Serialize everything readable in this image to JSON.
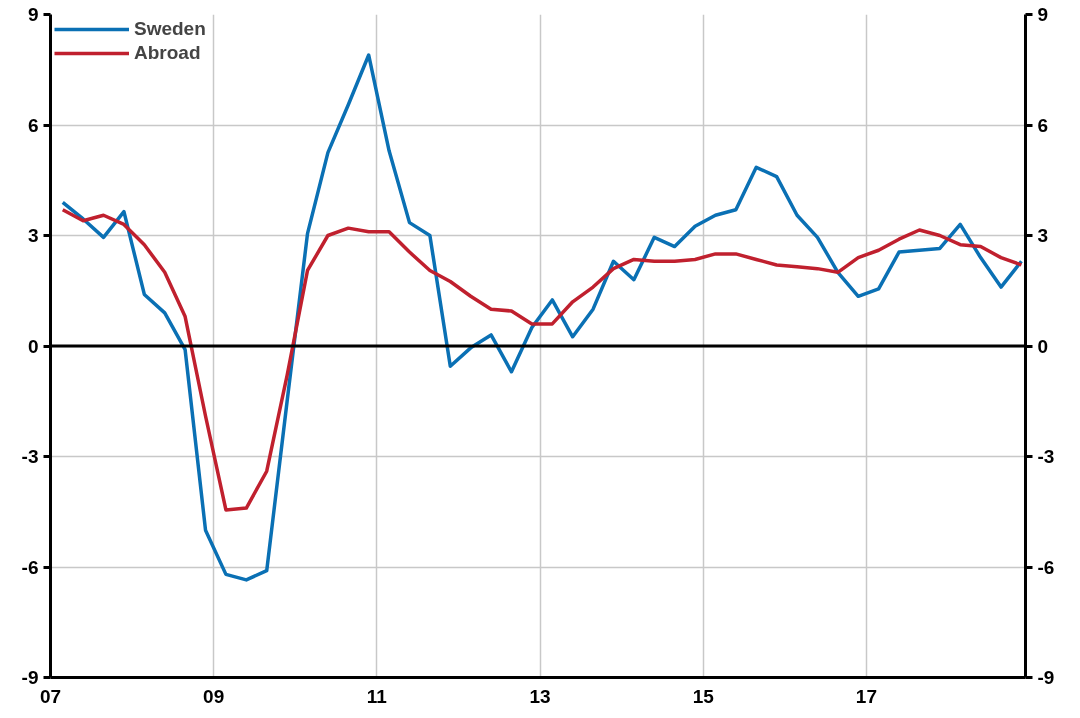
{
  "chart_data": {
    "type": "line",
    "x": [
      2007.15,
      2007.4,
      2007.65,
      2007.9,
      2008.15,
      2008.4,
      2008.65,
      2008.9,
      2009.15,
      2009.4,
      2009.65,
      2009.9,
      2010.15,
      2010.4,
      2010.65,
      2010.9,
      2011.15,
      2011.4,
      2011.65,
      2011.9,
      2012.15,
      2012.4,
      2012.65,
      2012.9,
      2013.15,
      2013.4,
      2013.65,
      2013.9,
      2014.15,
      2014.4,
      2014.65,
      2014.9,
      2015.15,
      2015.4,
      2015.65,
      2015.9,
      2016.15,
      2016.4,
      2016.65,
      2016.9,
      2017.15,
      2017.4,
      2017.65,
      2017.9,
      2018.15,
      2018.4,
      2018.65,
      2018.9
    ],
    "series": [
      {
        "name": "Sweden",
        "color": "#0a70b4",
        "values": [
          3.9,
          3.45,
          2.95,
          3.65,
          1.4,
          0.9,
          -0.1,
          -5.0,
          -6.2,
          -6.35,
          -6.1,
          -1.5,
          3.05,
          5.25,
          6.55,
          7.9,
          5.3,
          3.35,
          3.0,
          -0.55,
          -0.05,
          0.3,
          -0.7,
          0.5,
          1.25,
          0.25,
          1.0,
          2.3,
          1.8,
          2.95,
          2.7,
          3.25,
          3.55,
          3.7,
          4.85,
          4.6,
          3.55,
          2.95,
          2.0,
          1.35,
          1.55,
          2.55,
          2.6,
          2.65,
          3.3,
          2.4,
          1.6,
          2.3
        ]
      },
      {
        "name": "Abroad",
        "color": "#c0202e",
        "values": [
          3.7,
          3.4,
          3.55,
          3.3,
          2.75,
          2.0,
          0.8,
          -1.9,
          -4.45,
          -4.4,
          -3.4,
          -0.8,
          2.05,
          3.0,
          3.2,
          3.1,
          3.1,
          2.55,
          2.05,
          1.75,
          1.35,
          1.0,
          0.95,
          0.6,
          0.6,
          1.2,
          1.6,
          2.1,
          2.35,
          2.3,
          2.3,
          2.35,
          2.5,
          2.5,
          2.35,
          2.2,
          2.15,
          2.1,
          2.0,
          2.4,
          2.6,
          2.9,
          3.15,
          3.0,
          2.75,
          2.7,
          2.4,
          2.2
        ]
      }
    ],
    "xlim": [
      2007,
      2018.95
    ],
    "xticks": [
      {
        "value": 2007,
        "label": "07"
      },
      {
        "value": 2009,
        "label": "09"
      },
      {
        "value": 2011,
        "label": "11"
      },
      {
        "value": 2013,
        "label": "13"
      },
      {
        "value": 2015,
        "label": "15"
      },
      {
        "value": 2017,
        "label": "17"
      }
    ],
    "ylim": [
      -9,
      9
    ],
    "yticks": [
      -9,
      -6,
      -3,
      0,
      3,
      6,
      9
    ],
    "y2lim": [
      -9,
      9
    ],
    "y2ticks": [
      -9,
      -6,
      -3,
      0,
      3,
      6,
      9
    ],
    "ref_lines": [
      {
        "axis": "y",
        "value": 0,
        "color": "#000000"
      }
    ],
    "grid": true,
    "legend": "top left",
    "marker": "none",
    "line_style": "solid"
  }
}
